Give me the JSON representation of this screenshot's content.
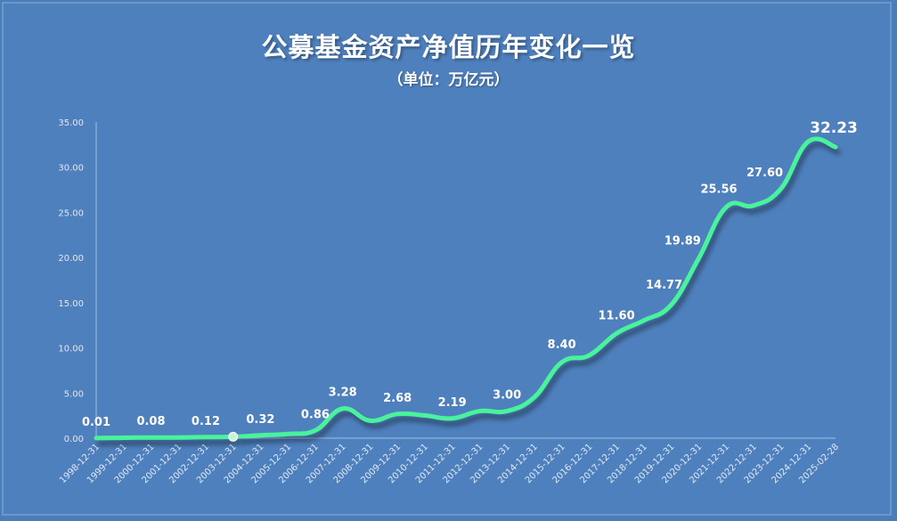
{
  "chart_data": {
    "type": "line",
    "title": "公募基金资产净值历年变化一览",
    "subtitle": "（单位：万亿元）",
    "categories": [
      "1998-12-31",
      "1999-12-31",
      "2000-12-31",
      "2001-12-31",
      "2002-12-31",
      "2003-12-31",
      "2004-12-31",
      "2005-12-31",
      "2006-12-31",
      "2007-12-31",
      "2008-12-31",
      "2009-12-31",
      "2010-12-31",
      "2011-12-31",
      "2012-12-31",
      "2013-12-31",
      "2014-12-31",
      "2015-12-31",
      "2016-12-31",
      "2017-12-31",
      "2018-12-31",
      "2019-12-31",
      "2020-12-31",
      "2021-12-31",
      "2022-12-31",
      "2023-12-31",
      "2024-12-31",
      "2025-02-28"
    ],
    "values": [
      0.01,
      0.05,
      0.08,
      0.08,
      0.12,
      0.16,
      0.32,
      0.47,
      0.86,
      3.28,
      1.94,
      2.68,
      2.52,
      2.19,
      3.0,
      3.0,
      4.54,
      8.4,
      9.16,
      11.6,
      13.03,
      14.77,
      19.89,
      25.56,
      25.75,
      27.6,
      32.83,
      32.23
    ],
    "data_labels": [
      {
        "index": 0,
        "text": "0.01"
      },
      {
        "index": 2,
        "text": "0.08"
      },
      {
        "index": 4,
        "text": "0.12"
      },
      {
        "index": 6,
        "text": "0.32"
      },
      {
        "index": 8,
        "text": "0.86"
      },
      {
        "index": 9,
        "text": "3.28"
      },
      {
        "index": 11,
        "text": "2.68"
      },
      {
        "index": 13,
        "text": "2.19"
      },
      {
        "index": 15,
        "text": "3.00"
      },
      {
        "index": 17,
        "text": "8.40"
      },
      {
        "index": 19,
        "text": "11.60"
      },
      {
        "index": 21,
        "text": "14.77"
      },
      {
        "index": 22,
        "text": "19.89"
      },
      {
        "index": 23,
        "text": "25.56"
      },
      {
        "index": 25,
        "text": "27.60"
      },
      {
        "index": 27,
        "text": "32.23"
      }
    ],
    "y_ticks": [
      "0.00",
      "5.00",
      "10.00",
      "15.00",
      "20.00",
      "25.00",
      "30.00",
      "35.00"
    ],
    "ylim": [
      0,
      35
    ],
    "grid": false,
    "line_color": "#48f39c",
    "highlight_index": 5
  }
}
